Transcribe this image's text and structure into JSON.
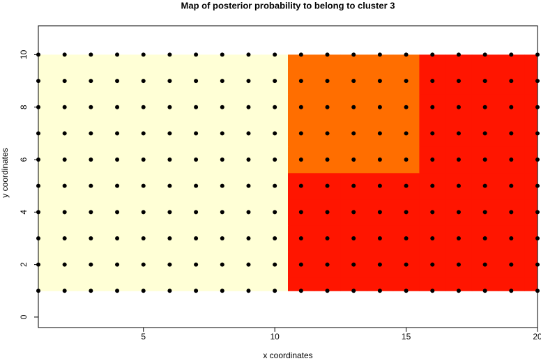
{
  "chart_data": {
    "type": "contour",
    "title": "Map of posterior probability to belong to cluster  3",
    "xlabel": "x coordinates",
    "ylabel": "y coordinates",
    "x": [
      1,
      2,
      3,
      4,
      5,
      6,
      7,
      8,
      9,
      10,
      11,
      12,
      13,
      14,
      15,
      16,
      17,
      18,
      19,
      20
    ],
    "y": [
      1,
      2,
      3,
      4,
      5,
      6,
      7,
      8,
      9,
      10
    ],
    "z": [
      [
        1,
        1,
        1,
        1,
        1,
        1,
        1,
        1,
        1,
        0.9,
        0.05,
        0.05,
        0.05,
        0.05,
        0.05,
        0.05,
        0.05,
        0.05,
        0.05,
        0.05
      ],
      [
        1,
        1,
        1,
        1,
        1,
        1,
        1,
        1,
        1,
        0.9,
        0.05,
        0.05,
        0.05,
        0.05,
        0.05,
        0.05,
        0.05,
        0.05,
        0.05,
        0.05
      ],
      [
        1,
        1,
        1,
        1,
        1,
        1,
        1,
        1,
        1,
        0.9,
        0.05,
        0.05,
        0.05,
        0.05,
        0.05,
        0.05,
        0.05,
        0.05,
        0.05,
        0.05
      ],
      [
        1,
        1,
        1,
        1,
        1,
        1,
        1,
        1,
        1,
        0.9,
        0.05,
        0.05,
        0.05,
        0.05,
        0.05,
        0.05,
        0.05,
        0.05,
        0.05,
        0.05
      ],
      [
        1,
        1,
        1,
        1,
        1,
        1,
        1,
        1,
        1,
        0.9,
        0.05,
        0.05,
        0.05,
        0.05,
        0.05,
        0.05,
        0.05,
        0.05,
        0.05,
        0.05
      ],
      [
        1,
        1,
        1,
        1,
        1,
        1,
        1,
        1,
        1,
        0.9,
        0.2,
        0.2,
        0.2,
        0.2,
        0.2,
        0.05,
        0.05,
        0.05,
        0.05,
        0.05
      ],
      [
        1,
        1,
        1,
        1,
        1,
        1,
        1,
        1,
        1,
        0.9,
        0.2,
        0.2,
        0.2,
        0.2,
        0.2,
        0.05,
        0.05,
        0.05,
        0.05,
        0.05
      ],
      [
        1,
        1,
        1,
        1,
        1,
        1,
        1,
        1,
        1,
        0.9,
        0.2,
        0.2,
        0.2,
        0.2,
        0.2,
        0.05,
        0.05,
        0.05,
        0.05,
        0.05
      ],
      [
        1,
        1,
        1,
        1,
        1,
        1,
        1,
        1,
        1,
        0.9,
        0.2,
        0.2,
        0.2,
        0.2,
        0.2,
        0.05,
        0.05,
        0.05,
        0.05,
        0.05
      ],
      [
        1,
        1,
        1,
        1,
        1,
        1,
        1,
        1,
        1,
        0.9,
        0.2,
        0.2,
        0.2,
        0.2,
        0.2,
        0.05,
        0.05,
        0.05,
        0.05,
        0.05
      ]
    ],
    "levels": [
      0,
      0.1,
      0.5,
      1
    ],
    "colors": [
      "#FF1500",
      "#FF6E00",
      "#FFFFD6"
    ],
    "point_color": "#000000",
    "xlim": [
      1,
      20
    ],
    "ylim": [
      -0.4,
      11.1
    ],
    "xticks": [
      5,
      10,
      15,
      20
    ],
    "yticks": [
      0,
      2,
      4,
      6,
      8,
      10
    ]
  }
}
